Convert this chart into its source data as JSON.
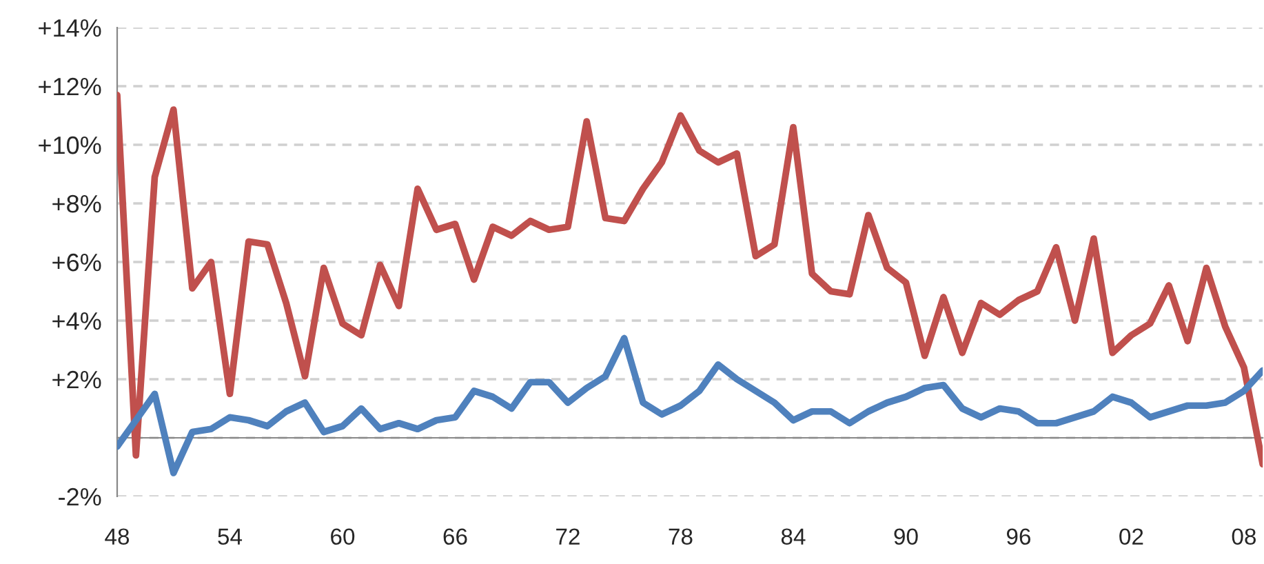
{
  "chart_data": {
    "type": "line",
    "x": [
      1948,
      1949,
      1950,
      1951,
      1952,
      1953,
      1954,
      1955,
      1956,
      1957,
      1958,
      1959,
      1960,
      1961,
      1962,
      1963,
      1964,
      1965,
      1966,
      1967,
      1968,
      1969,
      1970,
      1971,
      1972,
      1973,
      1974,
      1975,
      1976,
      1977,
      1978,
      1979,
      1980,
      1981,
      1982,
      1983,
      1984,
      1985,
      1986,
      1987,
      1988,
      1989,
      1990,
      1991,
      1992,
      1993,
      1994,
      1995,
      1996,
      1997,
      1998,
      1999,
      2000,
      2001,
      2002,
      2003,
      2004,
      2005,
      2006,
      2007,
      2008,
      2009
    ],
    "series": [
      {
        "color": "#c0504d",
        "values": [
          11.7,
          -0.6,
          8.9,
          11.2,
          5.1,
          6.0,
          1.5,
          6.7,
          6.6,
          4.6,
          2.1,
          5.8,
          3.9,
          3.5,
          5.9,
          4.5,
          8.5,
          7.1,
          7.3,
          5.4,
          7.2,
          6.9,
          7.4,
          7.1,
          7.2,
          10.8,
          7.5,
          7.4,
          8.5,
          9.4,
          11.0,
          9.8,
          9.4,
          9.7,
          6.2,
          6.6,
          10.6,
          5.6,
          5.0,
          4.9,
          7.6,
          5.8,
          5.3,
          2.8,
          4.8,
          2.9,
          4.6,
          4.2,
          4.7,
          5.0,
          6.5,
          4.0,
          6.8,
          2.9,
          3.5,
          3.9,
          5.2,
          3.3,
          5.8,
          3.8,
          2.4,
          -0.9
        ]
      },
      {
        "color": "#4f81bd",
        "values": [
          -0.3,
          0.6,
          1.5,
          -1.2,
          0.2,
          0.3,
          0.7,
          0.6,
          0.4,
          0.9,
          1.2,
          0.2,
          0.4,
          1.0,
          0.3,
          0.5,
          0.3,
          0.6,
          0.7,
          1.6,
          1.4,
          1.0,
          1.9,
          1.9,
          1.2,
          1.7,
          2.1,
          3.4,
          1.2,
          0.8,
          1.1,
          1.6,
          2.5,
          2.0,
          1.6,
          1.2,
          0.6,
          0.9,
          0.9,
          0.5,
          0.9,
          1.2,
          1.4,
          1.7,
          1.8,
          1.0,
          0.7,
          1.0,
          0.9,
          0.5,
          0.5,
          0.7,
          0.9,
          1.4,
          1.2,
          0.7,
          0.9,
          1.1,
          1.1,
          1.2,
          1.6,
          2.3
        ]
      }
    ],
    "xlim": [
      1948,
      2009
    ],
    "xticks": [
      {
        "value": 1948,
        "label": "48"
      },
      {
        "value": 1954,
        "label": "54"
      },
      {
        "value": 1960,
        "label": "60"
      },
      {
        "value": 1966,
        "label": "66"
      },
      {
        "value": 1972,
        "label": "72"
      },
      {
        "value": 1978,
        "label": "78"
      },
      {
        "value": 1984,
        "label": "84"
      },
      {
        "value": 1990,
        "label": "90"
      },
      {
        "value": 1996,
        "label": "96"
      },
      {
        "value": 2002,
        "label": "02"
      },
      {
        "value": 2008,
        "label": "08"
      }
    ],
    "ylim": [
      -2,
      14
    ],
    "yticks": [
      {
        "value": -2,
        "label": "-2%"
      },
      {
        "value": 0,
        "label": null
      },
      {
        "value": 2,
        "label": "+2%"
      },
      {
        "value": 4,
        "label": "+4%"
      },
      {
        "value": 6,
        "label": "+6%"
      },
      {
        "value": 8,
        "label": "+8%"
      },
      {
        "value": 10,
        "label": "+10%"
      },
      {
        "value": 12,
        "label": "+12%"
      },
      {
        "value": 14,
        "label": "+14%"
      }
    ],
    "grid": "y",
    "marker": "none",
    "line_style": "solid",
    "legend": false
  }
}
